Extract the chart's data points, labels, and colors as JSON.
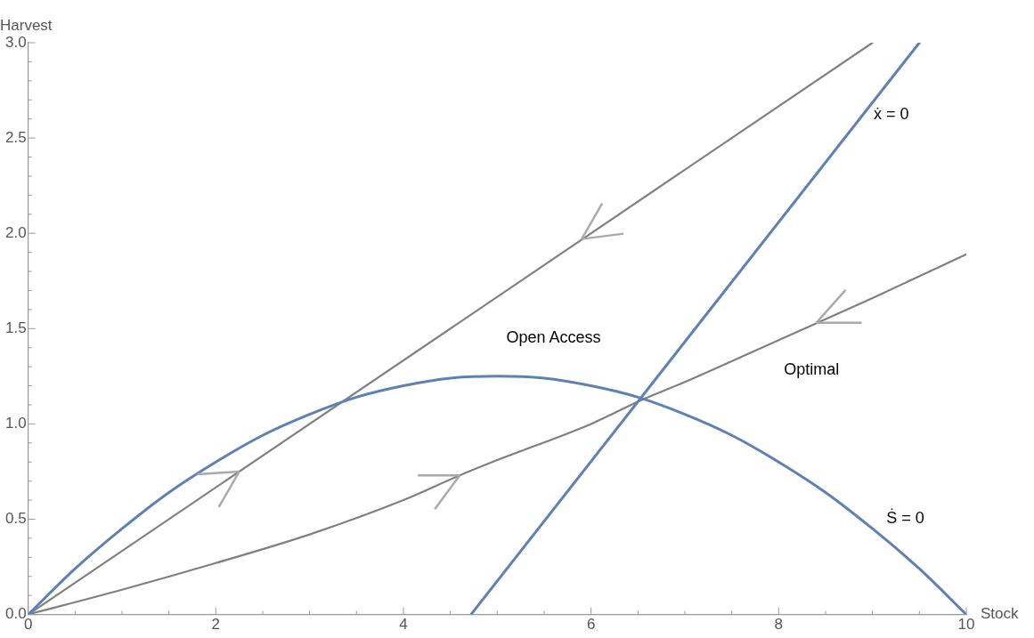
{
  "chart_data": {
    "type": "line",
    "xlabel": "Stock",
    "ylabel": "Harvest",
    "xlim": [
      0,
      10
    ],
    "xticks": [
      0,
      2,
      4,
      6,
      8,
      10
    ],
    "ylim": [
      0,
      3
    ],
    "yticks": [
      {
        "value": 0,
        "label": "0.0"
      },
      0.5,
      {
        "value": 1,
        "label": "1.0"
      },
      1.5,
      {
        "value": 2,
        "label": "2.0"
      },
      2.5,
      {
        "value": 3,
        "label": "3.0"
      }
    ],
    "grid": false,
    "legend": false,
    "marker": "none",
    "line_style": "solid",
    "series": [
      {
        "color": "#5e81b5",
        "x": [
          0,
          0.5,
          1,
          1.5,
          2,
          2.5,
          3,
          3.5,
          4,
          4.5,
          5,
          5.5,
          6,
          6.5,
          7,
          7.5,
          8,
          8.5,
          9,
          9.5,
          10
        ],
        "values": [
          0,
          0.24,
          0.45,
          0.64,
          0.8,
          0.94,
          1.05,
          1.14,
          1.2,
          1.24,
          1.25,
          1.24,
          1.2,
          1.14,
          1.05,
          0.94,
          0.8,
          0.64,
          0.45,
          0.24,
          0
        ]
      },
      {
        "color": "#5e81b5",
        "x": [
          4.72,
          9.5
        ],
        "values": [
          0,
          3
        ]
      },
      {
        "color": "#808080",
        "x": [
          0,
          9.0
        ],
        "values": [
          0,
          3
        ]
      },
      {
        "color": "#808080",
        "x": [
          0,
          1,
          2,
          3,
          4,
          4.6,
          5,
          6,
          6.56,
          7,
          8,
          9,
          10
        ],
        "values": [
          0,
          0.13,
          0.27,
          0.42,
          0.6,
          0.73,
          0.81,
          1.0,
          1.13,
          1.22,
          1.44,
          1.66,
          1.89
        ]
      }
    ],
    "annotations": [
      "Open Access",
      "Optimal",
      "ẋ = 0",
      "Ṡ = 0"
    ]
  }
}
